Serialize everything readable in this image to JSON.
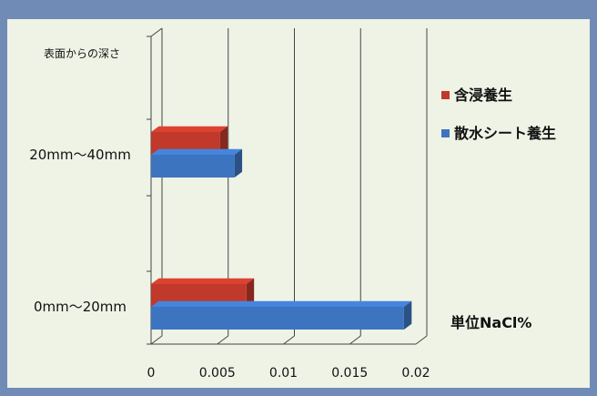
{
  "chart_data": {
    "type": "bar",
    "orientation": "horizontal",
    "style": "3d",
    "ylabel": "表面からの深さ",
    "unit_label": "単位NaCl%",
    "categories": [
      "0mm～20mm",
      "20mm～40mm"
    ],
    "series": [
      {
        "name": "含浸養生",
        "color": "#c0392b",
        "values": [
          0.0072,
          0.0052
        ]
      },
      {
        "name": "散水シート養生",
        "color": "#3d74c0",
        "values": [
          0.0191,
          0.0063
        ]
      }
    ],
    "xlim": [
      0,
      0.02
    ],
    "xticks": [
      "0",
      "0.005",
      "0.01",
      "0.015",
      "0.02"
    ],
    "grid": true,
    "legend_position": "right"
  }
}
